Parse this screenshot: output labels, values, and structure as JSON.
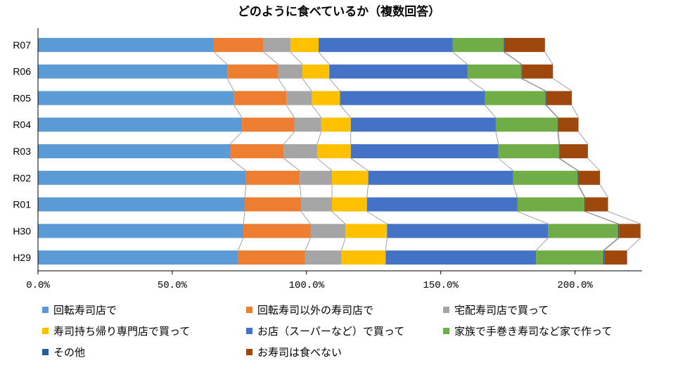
{
  "chart_data": {
    "type": "bar",
    "orientation": "horizontal",
    "stacked": true,
    "title": "どのように食べているか（複数回答）",
    "categories": [
      "R07",
      "R06",
      "R05",
      "R04",
      "R03",
      "R02",
      "R01",
      "H30",
      "H29"
    ],
    "xlim": [
      0,
      225
    ],
    "xticks": [
      0,
      50,
      100,
      150,
      200
    ],
    "xtick_labels": [
      "0.0%",
      "50.0%",
      "100.0%",
      "150.0%",
      "200.0%"
    ],
    "grid": false,
    "legend_position": "bottom",
    "series_connector_lines": true,
    "series": [
      {
        "name": "回転寿司店で",
        "color": "#5B9BD5",
        "values": [
          65.5,
          70.5,
          73.0,
          76.0,
          71.5,
          77.5,
          77.0,
          76.5,
          74.5
        ]
      },
      {
        "name": "回転寿司以外の寿司店で",
        "color": "#ED7D31",
        "values": [
          18.5,
          19.0,
          19.5,
          19.5,
          20.0,
          20.0,
          21.0,
          25.0,
          25.0
        ]
      },
      {
        "name": "宅配寿司店で買って",
        "color": "#A5A5A5",
        "values": [
          10.0,
          9.0,
          9.5,
          10.0,
          12.5,
          12.0,
          11.5,
          13.0,
          13.5
        ]
      },
      {
        "name": "寿司持ち帰り専門店で買って",
        "color": "#FFC000",
        "values": [
          10.5,
          10.0,
          10.5,
          11.0,
          12.5,
          13.5,
          13.0,
          15.5,
          16.5
        ]
      },
      {
        "name": "お店（スーパーなど）で買って",
        "color": "#4472C4",
        "values": [
          50.0,
          51.5,
          54.0,
          54.0,
          55.0,
          54.0,
          56.0,
          60.0,
          56.0
        ]
      },
      {
        "name": "家族で手巻き寿司など家で作って",
        "color": "#70AD47",
        "values": [
          19.0,
          20.0,
          22.5,
          23.0,
          22.5,
          24.0,
          25.0,
          26.0,
          25.0
        ]
      },
      {
        "name": "その他",
        "color": "#255E91",
        "values": [
          0.3,
          0.3,
          0.3,
          0.3,
          0.3,
          0.3,
          0.3,
          0.4,
          0.4
        ]
      },
      {
        "name": "お寿司は食べない",
        "color": "#9E480E",
        "values": [
          15.0,
          11.5,
          9.5,
          7.5,
          10.5,
          8.0,
          8.5,
          8.0,
          8.5
        ]
      }
    ]
  }
}
